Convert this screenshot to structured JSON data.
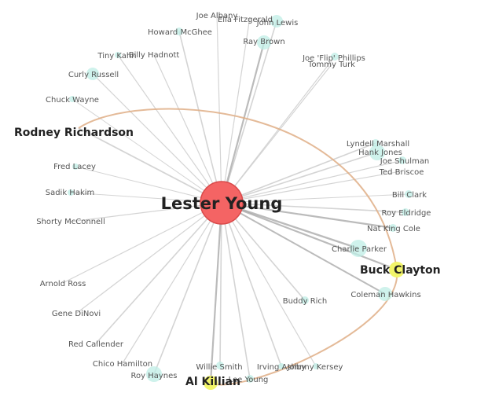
{
  "colors": {
    "center": "#f46464",
    "center_stroke": "#d94a4a",
    "highlight": "#f2f56a",
    "minor_node": "#bfeee6",
    "edge": "#cfcfcf",
    "edge_dark": "#9e9e9e",
    "arc": "#dfae86"
  },
  "center": {
    "name": "Lester Young"
  },
  "highlighted": [
    {
      "id": "rodney",
      "name": "Rodney Richardson"
    },
    {
      "id": "buck",
      "name": "Buck Clayton"
    },
    {
      "id": "al",
      "name": "Al Killian"
    }
  ],
  "nodes": [
    {
      "id": "joe_albany",
      "name": "Joe Albany"
    },
    {
      "id": "ella",
      "name": "Ella Fitzgerald"
    },
    {
      "id": "john_lewis",
      "name": "John Lewis"
    },
    {
      "id": "howard",
      "name": "Howard McGhee"
    },
    {
      "id": "ray_brown",
      "name": "Ray Brown"
    },
    {
      "id": "tiny",
      "name": "Tiny Kahn"
    },
    {
      "id": "billy",
      "name": "Billy Hadnott"
    },
    {
      "id": "flip",
      "name": "Joe 'Flip' Phillips"
    },
    {
      "id": "tommy",
      "name": "Tommy Turk"
    },
    {
      "id": "curly",
      "name": "Curly Russell"
    },
    {
      "id": "chuck",
      "name": "Chuck Wayne"
    },
    {
      "id": "lyndell",
      "name": "Lyndell Marshall"
    },
    {
      "id": "hank",
      "name": "Hank Jones"
    },
    {
      "id": "shulman",
      "name": "Joe Shulman"
    },
    {
      "id": "briscoe",
      "name": "Ted Briscoe"
    },
    {
      "id": "fred",
      "name": "Fred Lacey"
    },
    {
      "id": "sadik",
      "name": "Sadik Hakim"
    },
    {
      "id": "bill_clark",
      "name": "Bill Clark"
    },
    {
      "id": "shorty",
      "name": "Shorty McConnell"
    },
    {
      "id": "roy",
      "name": "Roy Eldridge"
    },
    {
      "id": "nat",
      "name": "Nat King Cole"
    },
    {
      "id": "charlie",
      "name": "Charlie Parker"
    },
    {
      "id": "arnold",
      "name": "Arnold Ross"
    },
    {
      "id": "coleman",
      "name": "Coleman Hawkins"
    },
    {
      "id": "buddy",
      "name": "Buddy Rich"
    },
    {
      "id": "gene",
      "name": "Gene DiNovi"
    },
    {
      "id": "red",
      "name": "Red Callender"
    },
    {
      "id": "chico",
      "name": "Chico Hamilton"
    },
    {
      "id": "willie",
      "name": "Willie Smith"
    },
    {
      "id": "irving",
      "name": "Irving Ashby"
    },
    {
      "id": "johnny",
      "name": "Johnny Kersey"
    },
    {
      "id": "roy_haynes",
      "name": "Roy Haynes"
    },
    {
      "id": "lee",
      "name": "Lee Young"
    }
  ]
}
